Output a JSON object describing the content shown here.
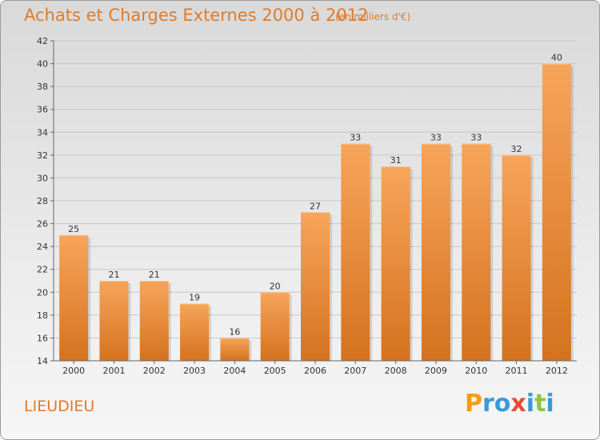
{
  "title": "Achats et Charges Externes 2000 à 2012",
  "subtitle": "(en milliers d'€)",
  "town": "LIEUDIEU",
  "logo": {
    "text": "Proxiti",
    "letters": [
      "P",
      "r",
      "o",
      "x",
      "i",
      "t",
      "i"
    ],
    "colors": [
      "#f39c12",
      "#3a9ad9",
      "#3a9ad9",
      "#e74c3c",
      "#3a9ad9",
      "#8dc63f",
      "#3a9ad9"
    ]
  },
  "chart_data": {
    "type": "bar",
    "categories": [
      "2000",
      "2001",
      "2002",
      "2003",
      "2004",
      "2005",
      "2006",
      "2007",
      "2008",
      "2009",
      "2010",
      "2011",
      "2012"
    ],
    "values": [
      25,
      21,
      21,
      19,
      16,
      20,
      27,
      33,
      31,
      33,
      33,
      32,
      40
    ],
    "ylim": [
      14,
      42
    ],
    "yticks": [
      14,
      16,
      18,
      20,
      22,
      24,
      26,
      28,
      30,
      32,
      34,
      36,
      38,
      40,
      42
    ],
    "grid": true,
    "bar_color_top": "#f7a55a",
    "bar_color_bottom": "#d4721f"
  }
}
